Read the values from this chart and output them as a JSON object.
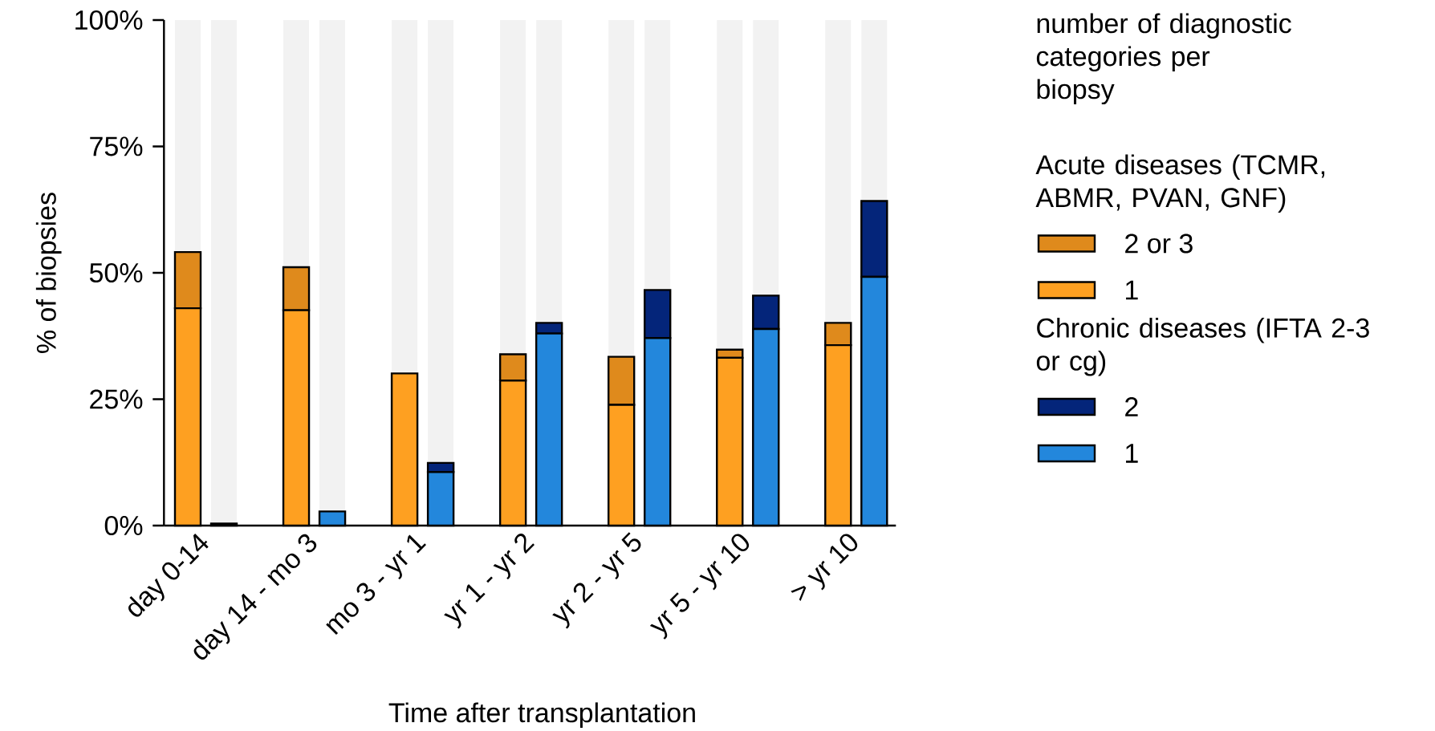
{
  "chart_data": {
    "type": "bar",
    "stacked": true,
    "xlabel": "Time after transplantation",
    "ylabel": "% of biopsies",
    "legend_title": "number of diagnostic categories per biopsy",
    "annotations": [
      "Acute diseases (TCMR, ABMR, PVAN, GNF)",
      "Chronic diseases (IFTA 2-3 or cg)"
    ],
    "categories": [
      "day 0-14",
      null,
      null,
      "day 14 - mo 3",
      null,
      null,
      "mo 3 - yr 1",
      null,
      null,
      "yr 1 - yr 2",
      null,
      null,
      "yr 2 - yr 5",
      null,
      null,
      "yr 5 - yr 10",
      null,
      null,
      "> yr 10",
      null,
      null
    ],
    "series": [
      {
        "name": "1",
        "color": "#fea021",
        "values": [
          43.0,
          null,
          null,
          42.6,
          null,
          null,
          30.1,
          null,
          null,
          28.7,
          null,
          null,
          23.9,
          null,
          null,
          33.2,
          null,
          null,
          35.7,
          null,
          null
        ]
      },
      {
        "name": "2 or 3",
        "color": "#df8a1c",
        "values": [
          11.1,
          null,
          null,
          8.5,
          null,
          null,
          0,
          null,
          null,
          5.2,
          null,
          null,
          9.5,
          null,
          null,
          1.6,
          null,
          null,
          4.4,
          null,
          null
        ]
      },
      {
        "name": "1",
        "color": "#2387dc",
        "values": [
          null,
          0.4,
          null,
          null,
          2.8,
          null,
          null,
          10.6,
          null,
          null,
          38.0,
          null,
          null,
          37.1,
          null,
          null,
          38.9,
          null,
          null,
          49.2,
          null
        ]
      },
      {
        "name": "2",
        "color": "#04257a",
        "values": [
          null,
          0,
          null,
          null,
          0,
          null,
          null,
          1.8,
          null,
          null,
          2.1,
          null,
          null,
          9.5,
          null,
          null,
          6.6,
          null,
          null,
          15.0,
          null
        ]
      },
      {
        "color": "#f2f2f2",
        "values": [
          45.9,
          99.6,
          null,
          48.9,
          97.2,
          null,
          69.9,
          87.6,
          null,
          66.1,
          59.9,
          null,
          66.6,
          53.4,
          null,
          65.2,
          54.5,
          null,
          59.9,
          35.8,
          null
        ]
      }
    ],
    "ylim": [
      0,
      100
    ],
    "yticks": [
      {
        "value": 0,
        "label": "0%"
      },
      {
        "value": 25,
        "label": "25%"
      },
      {
        "value": 50,
        "label": "50%"
      },
      {
        "value": 75,
        "label": "75%"
      },
      {
        "value": 100,
        "label": "100%"
      }
    ],
    "grid": false,
    "legend": "right"
  }
}
